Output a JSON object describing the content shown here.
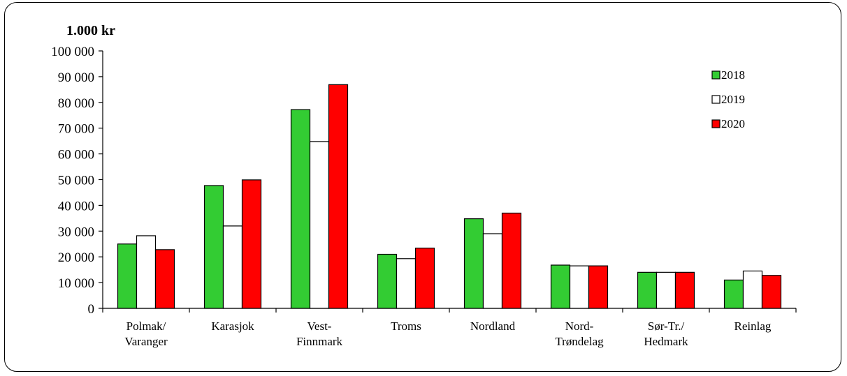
{
  "chart_data": {
    "type": "bar",
    "unit_label": "1.000 kr",
    "categories": [
      [
        "Polmak/",
        "Varanger"
      ],
      [
        "Karasjok"
      ],
      [
        "Vest-",
        "Finnmark"
      ],
      [
        "Troms"
      ],
      [
        "Nordland"
      ],
      [
        "Nord-",
        "Trøndelag"
      ],
      [
        "Sør-Tr./",
        "Hedmark"
      ],
      [
        "Reinlag"
      ]
    ],
    "series": [
      {
        "name": "2018",
        "color": "#33cc33",
        "values": [
          25000,
          47700,
          77200,
          21000,
          34800,
          16800,
          14000,
          11000
        ]
      },
      {
        "name": "2019",
        "color": "#ffffff",
        "values": [
          28200,
          32000,
          64800,
          19300,
          29000,
          16500,
          14000,
          14500
        ]
      },
      {
        "name": "2020",
        "color": "#ff0000",
        "values": [
          22800,
          49900,
          86900,
          23400,
          37000,
          16500,
          14000,
          12800
        ]
      }
    ],
    "ylim": [
      0,
      100000
    ],
    "yticks": [
      0,
      10000,
      20000,
      30000,
      40000,
      50000,
      60000,
      70000,
      80000,
      90000,
      100000
    ],
    "ytick_labels": [
      "0",
      "10 000",
      "20 000",
      "30 000",
      "40 000",
      "50 000",
      "60 000",
      "70 000",
      "80 000",
      "90 000",
      "100 000"
    ],
    "legend_position": "top-right",
    "grid": false
  }
}
